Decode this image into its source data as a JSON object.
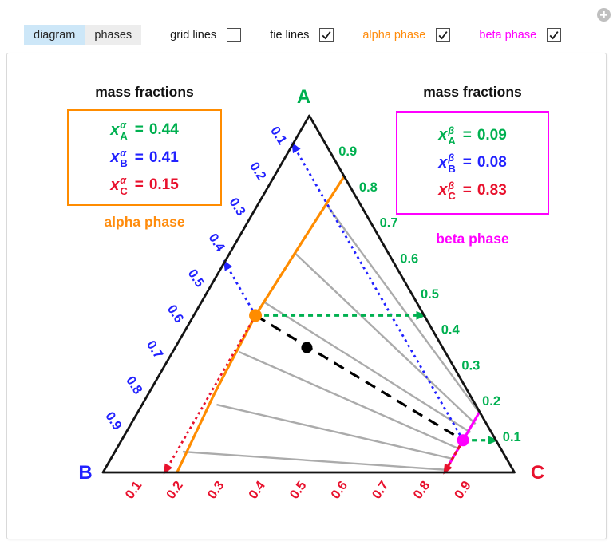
{
  "controls": {
    "tabs": [
      {
        "label": "diagram",
        "active": true
      },
      {
        "label": "phases",
        "active": false
      }
    ],
    "checkboxes": [
      {
        "label": "grid lines",
        "checked": false,
        "color": "#1a1a1a"
      },
      {
        "label": "tie lines",
        "checked": true,
        "color": "#1a1a1a"
      },
      {
        "label": "alpha phase",
        "checked": true,
        "color": "#ff8c0d"
      },
      {
        "label": "beta phase",
        "checked": true,
        "color": "#ff00ff"
      }
    ],
    "expand_button": "+"
  },
  "alpha_panel": {
    "title": "mass fractions",
    "caption": "alpha phase",
    "border_color": "#ff8c00",
    "caption_color": "#ff8c0d",
    "rows": [
      {
        "x": "x",
        "sup": "α",
        "sub": "A",
        "eq": "=",
        "value": "0.44",
        "color": "#00b050"
      },
      {
        "x": "x",
        "sup": "α",
        "sub": "B",
        "eq": "=",
        "value": "0.41",
        "color": "#2222ff"
      },
      {
        "x": "x",
        "sup": "α",
        "sub": "C",
        "eq": "=",
        "value": "0.15",
        "color": "#e8112d"
      }
    ]
  },
  "beta_panel": {
    "title": "mass fractions",
    "caption": "beta phase",
    "border_color": "#ff00ff",
    "caption_color": "#ff00ff",
    "rows": [
      {
        "x": "x",
        "sup": "β",
        "sub": "A",
        "eq": "=",
        "value": "0.09",
        "color": "#00b050"
      },
      {
        "x": "x",
        "sup": "β",
        "sub": "B",
        "eq": "=",
        "value": "0.08",
        "color": "#2222ff"
      },
      {
        "x": "x",
        "sup": "β",
        "sub": "C",
        "eq": "=",
        "value": "0.83",
        "color": "#e8112d"
      }
    ]
  },
  "diagram": {
    "type": "ternary-phase-diagram",
    "vertices": {
      "A": {
        "label": "A",
        "color": "#00b050"
      },
      "B": {
        "label": "B",
        "color": "#2222ff"
      },
      "C": {
        "label": "C",
        "color": "#e8112d"
      }
    },
    "axes": {
      "right_A": {
        "color": "#00b050",
        "ticks": [
          "0.9",
          "0.8",
          "0.7",
          "0.6",
          "0.5",
          "0.4",
          "0.3",
          "0.2",
          "0.1"
        ]
      },
      "left_B": {
        "color": "#2222ff",
        "ticks": [
          "0.1",
          "0.2",
          "0.3",
          "0.4",
          "0.5",
          "0.6",
          "0.7",
          "0.8",
          "0.9"
        ]
      },
      "bottom_C": {
        "color": "#e8112d",
        "ticks": [
          "0.1",
          "0.2",
          "0.3",
          "0.4",
          "0.5",
          "0.6",
          "0.7",
          "0.8",
          "0.9"
        ]
      }
    },
    "colors": {
      "triangle": "#141414",
      "tie_line": "#ababab",
      "alpha_binodal": "#ff8c00",
      "beta_binodal": "#ff00ff",
      "overall_tie": "#000000"
    },
    "points": {
      "alpha": {
        "fractions": [
          0.44,
          0.41,
          0.15
        ],
        "color": "#ff8c00"
      },
      "beta": {
        "fractions": [
          0.09,
          0.08,
          0.83
        ],
        "color": "#ff00ff"
      },
      "overall": {
        "fractions": [
          0.35,
          0.33,
          0.32
        ],
        "color": "#000000"
      }
    },
    "alpha_binodal": [
      [
        0.83,
        0.0,
        0.17
      ],
      [
        0.65,
        0.19,
        0.16
      ],
      [
        0.44,
        0.41,
        0.15
      ],
      [
        0.22,
        0.62,
        0.16
      ],
      [
        0.0,
        0.82,
        0.18
      ]
    ],
    "beta_binodal": [
      [
        0.17,
        0.0,
        0.83
      ],
      [
        0.09,
        0.08,
        0.83
      ],
      [
        0.0,
        0.17,
        0.83
      ]
    ],
    "tie_lines": [
      {
        "left": [
          0.747,
          0.082,
          0.171
        ],
        "right": [
          0.161,
          0.001,
          0.838
        ]
      },
      {
        "left": [
          0.615,
          0.227,
          0.158
        ],
        "right": [
          0.136,
          0.027,
          0.837
        ]
      },
      {
        "left": [
          0.477,
          0.37,
          0.153
        ],
        "right": [
          0.112,
          0.051,
          0.837
        ]
      },
      {
        "left": [
          0.338,
          0.501,
          0.161
        ],
        "right": [
          0.067,
          0.103,
          0.83
        ]
      },
      {
        "left": [
          0.19,
          0.629,
          0.181
        ],
        "right": [
          0.038,
          0.131,
          0.831
        ]
      },
      {
        "left": [
          0.058,
          0.777,
          0.165
        ],
        "right": [
          0.007,
          0.16,
          0.833
        ]
      }
    ],
    "arrows": [
      {
        "name": "alpha-B-reading-arrow",
        "from": [
          0.44,
          0.41,
          0.15
        ],
        "to": [
          0.59,
          0.41,
          0.0
        ],
        "color": "#2222ff",
        "dash": "3 4.5",
        "width": 2.8
      },
      {
        "name": "beta-B-reading-arrow",
        "from": [
          0.09,
          0.08,
          0.83
        ],
        "to": [
          0.92,
          0.08,
          0.0
        ],
        "color": "#2222ff",
        "dash": "3 4.5",
        "width": 2.8
      },
      {
        "name": "alpha-A-reading-arrow",
        "from": [
          0.44,
          0.41,
          0.15
        ],
        "to": [
          0.44,
          0.0,
          0.56
        ],
        "color": "#00b050",
        "dash": "6 5",
        "width": 3.2
      },
      {
        "name": "beta-A-reading-arrow",
        "from": [
          0.09,
          0.08,
          0.83
        ],
        "to": [
          0.09,
          0.0,
          0.91
        ],
        "color": "#00b050",
        "dash": "6 5",
        "width": 3.2
      },
      {
        "name": "alpha-C-reading-arrow",
        "from": [
          0.44,
          0.41,
          0.15
        ],
        "to": [
          0.0,
          0.85,
          0.15
        ],
        "color": "#e8112d",
        "dash": "3 4",
        "width": 2.8
      },
      {
        "name": "beta-C-reading-arrow",
        "from": [
          0.09,
          0.08,
          0.83
        ],
        "to": [
          0.0,
          0.17,
          0.83
        ],
        "color": "#e8112d",
        "dash": "5 3",
        "width": 3.2
      }
    ]
  }
}
